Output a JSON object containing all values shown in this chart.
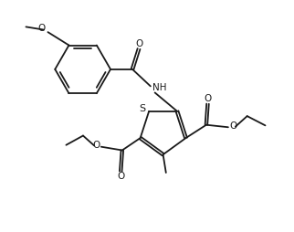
{
  "bg_color": "#ffffff",
  "line_color": "#1a1a1a",
  "line_width": 1.3,
  "figsize": [
    3.22,
    2.54
  ],
  "dpi": 100,
  "xlim": [
    0,
    10
  ],
  "ylim": [
    0,
    7.9
  ]
}
